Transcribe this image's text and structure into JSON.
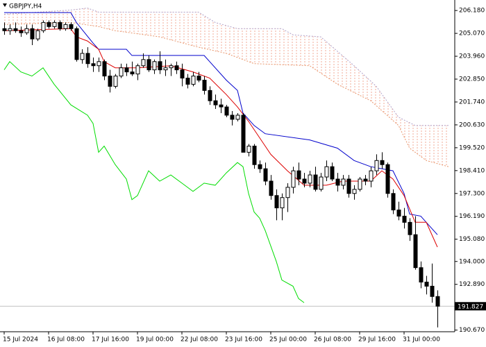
{
  "chart_data": {
    "type": "candlestick",
    "title": "GBPJPY,H4",
    "ylim": [
      190.59,
      206.69
    ],
    "yticks": [
      {
        "value": 206.18,
        "label": "206.180"
      },
      {
        "value": 205.07,
        "label": "205.070"
      },
      {
        "value": 203.96,
        "label": "203.960"
      },
      {
        "value": 202.85,
        "label": "202.850"
      },
      {
        "value": 201.74,
        "label": "201.740"
      },
      {
        "value": 200.63,
        "label": "200.630"
      },
      {
        "value": 199.52,
        "label": "199.520"
      },
      {
        "value": 198.41,
        "label": "198.410"
      },
      {
        "value": 197.3,
        "label": "197.300"
      },
      {
        "value": 196.19,
        "label": "196.190"
      },
      {
        "value": 195.08,
        "label": "195.080"
      },
      {
        "value": 194,
        "label": "194.000"
      },
      {
        "value": 192.89,
        "label": "192.890"
      },
      {
        "value": 190.67,
        "label": "190.670"
      }
    ],
    "xlim": [
      -0.5,
      81
    ],
    "xticks": [
      {
        "value": 0,
        "label": "15 Jul 2024"
      },
      {
        "value": 8,
        "label": "16 Jul 08:00"
      },
      {
        "value": 16,
        "label": "17 Jul 16:00"
      },
      {
        "value": 24,
        "label": "19 Jul 00:00"
      },
      {
        "value": 32,
        "label": "22 Jul 08:00"
      },
      {
        "value": 40,
        "label": "23 Jul 16:00"
      },
      {
        "value": 48,
        "label": "25 Jul 00:00"
      },
      {
        "value": 56,
        "label": "26 Jul 08:00"
      },
      {
        "value": 64,
        "label": "29 Jul 16:00"
      },
      {
        "value": 72,
        "label": "31 Jul 00:00"
      }
    ],
    "last_price": 191.827,
    "bull_color": "#ffffff",
    "bear_color": "#000000",
    "ohlc": [
      [
        205.3,
        205.6,
        205.0,
        205.2
      ],
      [
        205.2,
        205.5,
        205.0,
        205.3
      ],
      [
        205.3,
        205.6,
        205.1,
        205.2
      ],
      [
        205.2,
        205.4,
        204.9,
        205.1
      ],
      [
        205.1,
        205.5,
        205.0,
        205.3
      ],
      [
        205.3,
        205.5,
        204.5,
        204.8
      ],
      [
        204.8,
        205.3,
        204.7,
        205.2
      ],
      [
        205.2,
        205.7,
        205.1,
        205.6
      ],
      [
        205.6,
        205.7,
        205.3,
        205.4
      ],
      [
        205.4,
        205.7,
        205.3,
        205.6
      ],
      [
        205.6,
        205.7,
        205.2,
        205.3
      ],
      [
        205.3,
        205.6,
        205.2,
        205.5
      ],
      [
        205.5,
        205.6,
        205.2,
        205.3
      ],
      [
        205.3,
        205.4,
        203.7,
        203.8
      ],
      [
        203.8,
        204.3,
        203.6,
        204.1
      ],
      [
        204.1,
        204.4,
        203.4,
        203.6
      ],
      [
        203.6,
        203.9,
        203.2,
        203.5
      ],
      [
        203.5,
        203.9,
        203.2,
        203.7
      ],
      [
        203.7,
        203.8,
        202.8,
        203.0
      ],
      [
        203.0,
        203.3,
        202.2,
        202.5
      ],
      [
        202.5,
        203.1,
        202.4,
        203.0
      ],
      [
        203.0,
        203.6,
        202.9,
        203.4
      ],
      [
        203.4,
        203.6,
        203.0,
        203.2
      ],
      [
        203.2,
        203.7,
        203.0,
        203.1
      ],
      [
        203.1,
        203.6,
        202.8,
        203.5
      ],
      [
        203.5,
        204.1,
        203.4,
        203.8
      ],
      [
        203.8,
        204.0,
        203.2,
        203.3
      ],
      [
        203.3,
        203.8,
        203.1,
        203.7
      ],
      [
        203.7,
        204.2,
        203.1,
        203.3
      ],
      [
        203.3,
        203.8,
        203.0,
        203.4
      ],
      [
        203.4,
        203.6,
        203.0,
        203.5
      ],
      [
        203.5,
        203.7,
        203.1,
        203.3
      ],
      [
        203.3,
        203.6,
        202.5,
        202.9
      ],
      [
        202.9,
        203.1,
        202.4,
        202.6
      ],
      [
        202.6,
        203.2,
        202.5,
        203.0
      ],
      [
        203.0,
        203.2,
        202.7,
        202.8
      ],
      [
        202.8,
        203.0,
        202.1,
        202.3
      ],
      [
        202.3,
        202.5,
        201.6,
        201.8
      ],
      [
        201.8,
        202.1,
        201.4,
        201.6
      ],
      [
        201.6,
        201.9,
        201.2,
        201.5
      ],
      [
        201.5,
        201.6,
        201.0,
        201.1
      ],
      [
        201.1,
        201.3,
        200.6,
        200.9
      ],
      [
        200.9,
        201.2,
        200.8,
        201.1
      ],
      [
        201.1,
        201.2,
        199.3,
        199.3
      ],
      [
        199.3,
        199.7,
        199.1,
        199.6
      ],
      [
        199.6,
        199.7,
        198.5,
        198.7
      ],
      [
        198.7,
        198.9,
        198.3,
        198.5
      ],
      [
        198.5,
        198.8,
        197.7,
        197.9
      ],
      [
        197.9,
        198.2,
        197.0,
        197.2
      ],
      [
        197.2,
        197.5,
        196.0,
        196.6
      ],
      [
        196.6,
        197.3,
        196.0,
        197.1
      ],
      [
        197.1,
        197.8,
        196.4,
        197.6
      ],
      [
        197.6,
        198.6,
        197.3,
        198.4
      ],
      [
        198.4,
        198.8,
        197.7,
        198.0
      ],
      [
        198.0,
        198.3,
        197.6,
        197.8
      ],
      [
        197.8,
        198.4,
        197.6,
        198.2
      ],
      [
        198.2,
        198.6,
        197.4,
        197.5
      ],
      [
        197.5,
        198.3,
        197.4,
        198.1
      ],
      [
        198.1,
        198.9,
        197.9,
        198.6
      ],
      [
        198.6,
        198.8,
        197.9,
        198.0
      ],
      [
        198.0,
        198.3,
        197.4,
        197.7
      ],
      [
        197.7,
        198.2,
        197.5,
        198.0
      ],
      [
        198.0,
        198.2,
        197.1,
        197.3
      ],
      [
        197.3,
        197.7,
        197.0,
        197.5
      ],
      [
        197.5,
        198.1,
        197.4,
        198.0
      ],
      [
        198.0,
        198.2,
        197.7,
        197.9
      ],
      [
        197.9,
        198.6,
        197.6,
        198.4
      ],
      [
        198.4,
        199.2,
        198.2,
        198.9
      ],
      [
        198.9,
        199.3,
        198.5,
        198.7
      ],
      [
        198.7,
        198.8,
        197.1,
        197.3
      ],
      [
        197.3,
        197.5,
        196.3,
        196.5
      ],
      [
        196.5,
        196.9,
        196.0,
        196.2
      ],
      [
        196.2,
        196.6,
        195.6,
        195.9
      ],
      [
        195.9,
        196.1,
        195.0,
        195.3
      ],
      [
        195.3,
        196.2,
        193.6,
        193.7
      ],
      [
        193.7,
        194.0,
        192.7,
        193.0
      ],
      [
        193.0,
        193.3,
        192.4,
        192.8
      ],
      [
        192.8,
        193.9,
        192.0,
        192.3
      ],
      [
        192.3,
        192.6,
        190.8,
        191.83
      ]
    ],
    "cloud": {
      "color": "#f4a582",
      "span_a": {
        "color": "#e8956a",
        "x": [
          0,
          12,
          17,
          20,
          28,
          35,
          40,
          45,
          55,
          60,
          66,
          71,
          73,
          76,
          80
        ],
        "values": [
          205.5,
          205.6,
          205.4,
          205.2,
          204.9,
          204.4,
          204.1,
          203.6,
          203.5,
          202.6,
          201.8,
          200.6,
          199.5,
          198.9,
          198.6
        ]
      },
      "span_b": {
        "color": "#b0a0c8",
        "x": [
          0,
          12,
          15,
          17,
          35,
          38,
          42,
          50,
          52,
          57,
          63,
          67,
          71,
          74,
          80
        ],
        "values": [
          206.0,
          206.2,
          206.3,
          206.1,
          206.1,
          205.6,
          205.3,
          205.3,
          205.0,
          204.9,
          203.5,
          202.5,
          201.0,
          200.6,
          200.6
        ]
      }
    },
    "series": [
      {
        "color": "#0000cc",
        "x": [
          0,
          12,
          13,
          16,
          17,
          22,
          23,
          36,
          37,
          40,
          42,
          43,
          45,
          47,
          55,
          60,
          63,
          66,
          70,
          72,
          73,
          75,
          77,
          78
        ],
        "values": [
          206.08,
          206.08,
          205.6,
          204.6,
          204.3,
          204.3,
          204.0,
          204.0,
          203.7,
          202.8,
          202.3,
          201.2,
          200.6,
          200.2,
          199.9,
          199.5,
          198.9,
          198.6,
          198.4,
          197.3,
          196.3,
          196.2,
          195.6,
          195.3
        ]
      },
      {
        "color": "#dd0000",
        "x": [
          0,
          12,
          13,
          15,
          17,
          18,
          20,
          24,
          30,
          34,
          37,
          40,
          42,
          44,
          46,
          48,
          51,
          54,
          58,
          61,
          66,
          68,
          70,
          72,
          74,
          76,
          78
        ],
        "values": [
          205.2,
          205.3,
          204.9,
          204.7,
          204.3,
          203.7,
          203.4,
          203.4,
          203.5,
          203.2,
          202.9,
          202.1,
          201.5,
          200.8,
          200.0,
          199.2,
          198.4,
          197.7,
          197.7,
          197.9,
          197.9,
          198.4,
          198.0,
          197.2,
          195.9,
          195.9,
          194.7
        ]
      },
      {
        "color": "#00dd00",
        "x": [
          0,
          1,
          3,
          5,
          7,
          9,
          12,
          15,
          16,
          17,
          18,
          20,
          22,
          23,
          24,
          26,
          28,
          30,
          32,
          34,
          36,
          38,
          40,
          42,
          43,
          44,
          45,
          46,
          47,
          49,
          50,
          52,
          53,
          54
        ],
        "values": [
          203.3,
          203.7,
          203.2,
          203.0,
          203.4,
          202.6,
          201.6,
          201.1,
          200.7,
          199.3,
          199.6,
          198.7,
          198.0,
          197.0,
          197.2,
          198.4,
          197.9,
          198.2,
          197.8,
          197.4,
          197.8,
          197.7,
          198.3,
          198.8,
          198.6,
          197.3,
          196.4,
          196.1,
          195.5,
          194.0,
          193.1,
          192.8,
          192.2,
          192.0
        ]
      }
    ]
  }
}
